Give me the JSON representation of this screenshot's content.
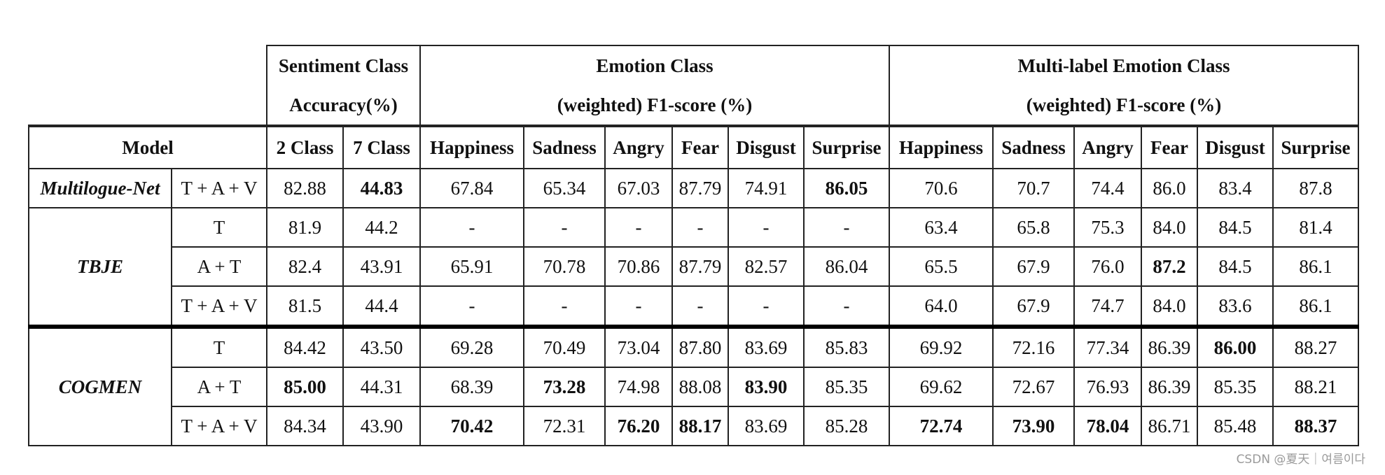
{
  "header": {
    "sentiment_line1": "Sentiment Class",
    "sentiment_line2": "Accuracy(%)",
    "emotion_line1": "Emotion Class",
    "emotion_line2": "(weighted) F1-score (%)",
    "multi_line1": "Multi-label Emotion Class",
    "multi_line2": "(weighted) F1-score (%)"
  },
  "subheader": {
    "model": "Model",
    "c2": "2 Class",
    "c7": "7 Class",
    "emotions": [
      "Happiness",
      "Sadness",
      "Angry",
      "Fear",
      "Disgust",
      "Surprise"
    ],
    "multi": [
      "Happiness",
      "Sadness",
      "Angry",
      "Fear",
      "Disgust",
      "Surprise"
    ]
  },
  "groups": [
    {
      "model": "Multilogue-Net",
      "rows": [
        {
          "mod": "T + A + V",
          "cells": [
            "82.88",
            "44.83",
            "67.84",
            "65.34",
            "67.03",
            "87.79",
            "74.91",
            "86.05",
            "70.6",
            "70.7",
            "74.4",
            "86.0",
            "83.4",
            "87.8"
          ],
          "bold": [
            false,
            true,
            false,
            false,
            false,
            false,
            false,
            true,
            false,
            false,
            false,
            false,
            false,
            false
          ]
        }
      ]
    },
    {
      "model": "TBJE",
      "rows": [
        {
          "mod": "T",
          "cells": [
            "81.9",
            "44.2",
            "-",
            "-",
            "-",
            "-",
            "-",
            "-",
            "63.4",
            "65.8",
            "75.3",
            "84.0",
            "84.5",
            "81.4"
          ],
          "bold": [
            false,
            false,
            false,
            false,
            false,
            false,
            false,
            false,
            false,
            false,
            false,
            false,
            false,
            false
          ]
        },
        {
          "mod": "A + T",
          "cells": [
            "82.4",
            "43.91",
            "65.91",
            "70.78",
            "70.86",
            "87.79",
            "82.57",
            "86.04",
            "65.5",
            "67.9",
            "76.0",
            "87.2",
            "84.5",
            "86.1"
          ],
          "bold": [
            false,
            false,
            false,
            false,
            false,
            false,
            false,
            false,
            false,
            false,
            false,
            true,
            false,
            false
          ]
        },
        {
          "mod": "T + A + V",
          "cells": [
            "81.5",
            "44.4",
            "-",
            "-",
            "-",
            "-",
            "-",
            "-",
            "64.0",
            "67.9",
            "74.7",
            "84.0",
            "83.6",
            "86.1"
          ],
          "bold": [
            false,
            false,
            false,
            false,
            false,
            false,
            false,
            false,
            false,
            false,
            false,
            false,
            false,
            false
          ]
        }
      ]
    },
    {
      "model": "COGMEN",
      "rows": [
        {
          "mod": "T",
          "cells": [
            "84.42",
            "43.50",
            "69.28",
            "70.49",
            "73.04",
            "87.80",
            "83.69",
            "85.83",
            "69.92",
            "72.16",
            "77.34",
            "86.39",
            "86.00",
            "88.27"
          ],
          "bold": [
            false,
            false,
            false,
            false,
            false,
            false,
            false,
            false,
            false,
            false,
            false,
            false,
            true,
            false
          ]
        },
        {
          "mod": "A + T",
          "cells": [
            "85.00",
            "44.31",
            "68.39",
            "73.28",
            "74.98",
            "88.08",
            "83.90",
            "85.35",
            "69.62",
            "72.67",
            "76.93",
            "86.39",
            "85.35",
            "88.21"
          ],
          "bold": [
            true,
            false,
            false,
            true,
            false,
            false,
            true,
            false,
            false,
            false,
            false,
            false,
            false,
            false
          ]
        },
        {
          "mod": "T + A + V",
          "cells": [
            "84.34",
            "43.90",
            "70.42",
            "72.31",
            "76.20",
            "88.17",
            "83.69",
            "85.28",
            "72.74",
            "73.90",
            "78.04",
            "86.71",
            "85.48",
            "88.37"
          ],
          "bold": [
            false,
            false,
            true,
            false,
            true,
            true,
            false,
            false,
            true,
            true,
            true,
            false,
            false,
            true
          ]
        }
      ]
    }
  ],
  "watermark": "CSDN @夏天｜여름이다"
}
